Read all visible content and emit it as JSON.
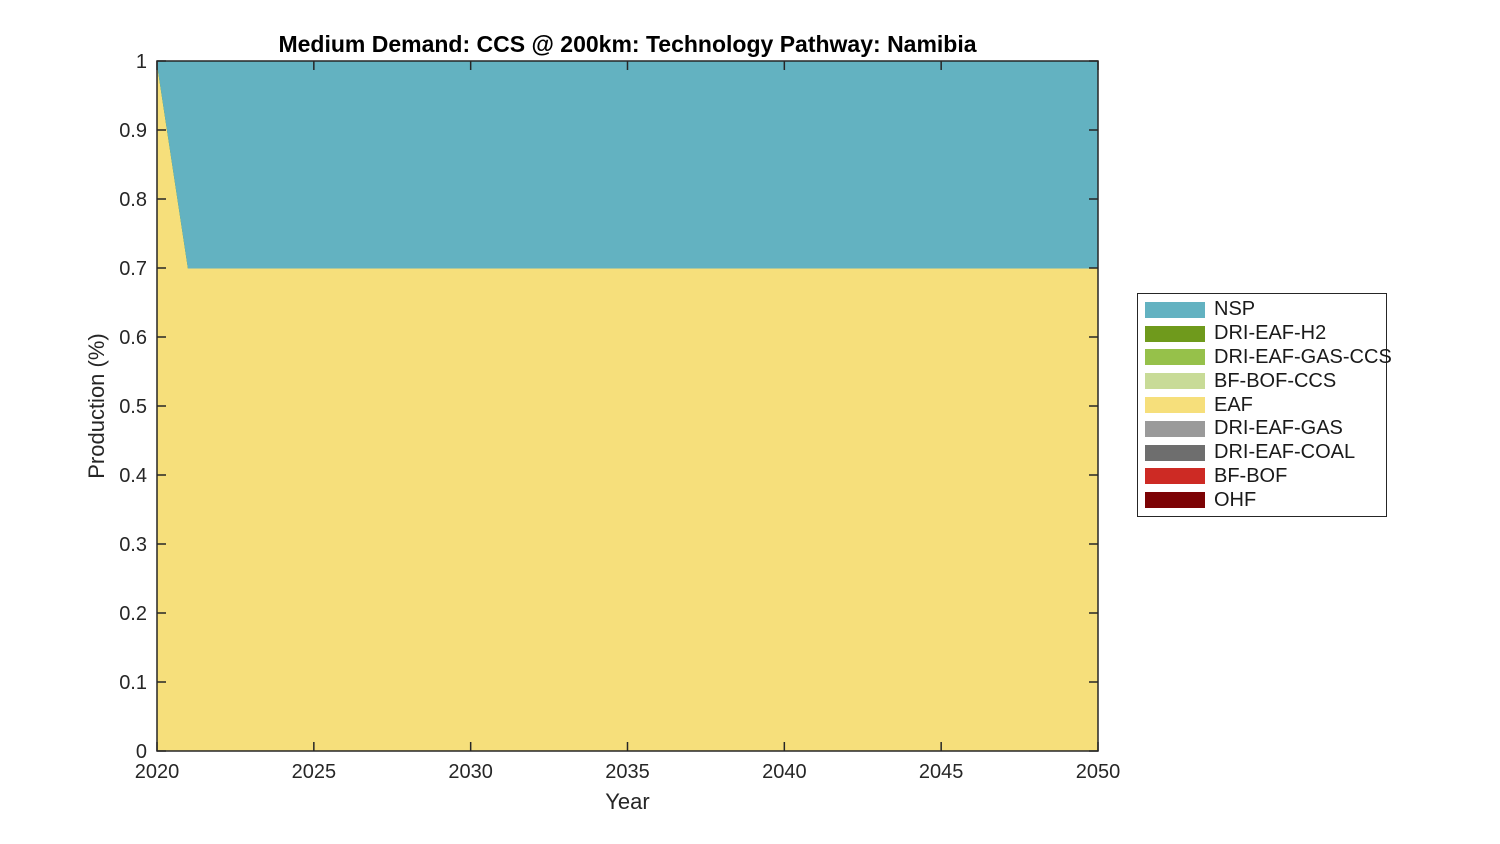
{
  "figure": {
    "background": "#ffffff",
    "axis_color": "#262626",
    "title_color": "#000000"
  },
  "chart_data": {
    "type": "area",
    "stacked": true,
    "title": "Medium Demand: CCS @ 200km: Technology Pathway: Namibia",
    "xlabel": "Year",
    "ylabel": "Production (%)",
    "xlim": [
      2020,
      2050
    ],
    "ylim": [
      0,
      1
    ],
    "xticks": [
      2020,
      2025,
      2030,
      2035,
      2040,
      2045,
      2050
    ],
    "ytick_labels": [
      "0",
      "0.1",
      "0.2",
      "0.3",
      "0.4",
      "0.5",
      "0.6",
      "0.7",
      "0.8",
      "0.9",
      "1"
    ],
    "grid": false,
    "x": [
      2020,
      2021,
      2050
    ],
    "series": [
      {
        "name": "OHF",
        "color": "#7c0305",
        "values": [
          0,
          0,
          0
        ]
      },
      {
        "name": "BF-BOF",
        "color": "#cd2a24",
        "values": [
          0,
          0,
          0
        ]
      },
      {
        "name": "DRI-EAF-COAL",
        "color": "#6e6e6e",
        "values": [
          0,
          0,
          0
        ]
      },
      {
        "name": "DRI-EAF-GAS",
        "color": "#9a9a9a",
        "values": [
          0,
          0,
          0
        ]
      },
      {
        "name": "EAF",
        "color": "#f6df7b",
        "values": [
          1.0,
          0.7,
          0.7
        ]
      },
      {
        "name": "BF-BOF-CCS",
        "color": "#c8db97",
        "values": [
          0,
          0,
          0
        ]
      },
      {
        "name": "DRI-EAF-GAS-CCS",
        "color": "#96c14a",
        "values": [
          0,
          0,
          0
        ]
      },
      {
        "name": "DRI-EAF-H2",
        "color": "#6f9a1c",
        "values": [
          0,
          0,
          0
        ]
      },
      {
        "name": "NSP",
        "color": "#63b2c1",
        "values": [
          0,
          0.3,
          0.3
        ]
      }
    ],
    "legend": {
      "position": "outside-right",
      "entries": [
        {
          "label": "NSP",
          "color": "#63b2c1"
        },
        {
          "label": "DRI-EAF-H2",
          "color": "#6f9a1c"
        },
        {
          "label": "DRI-EAF-GAS-CCS",
          "color": "#96c14a"
        },
        {
          "label": "BF-BOF-CCS",
          "color": "#c8db97"
        },
        {
          "label": "EAF",
          "color": "#f6df7b"
        },
        {
          "label": "DRI-EAF-GAS",
          "color": "#9a9a9a"
        },
        {
          "label": "DRI-EAF-COAL",
          "color": "#6e6e6e"
        },
        {
          "label": "BF-BOF",
          "color": "#cd2a24"
        },
        {
          "label": "OHF",
          "color": "#7c0305"
        }
      ]
    }
  }
}
